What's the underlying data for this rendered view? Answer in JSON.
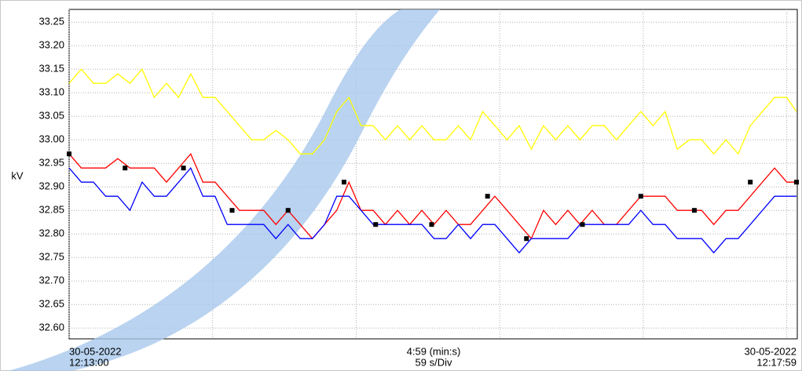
{
  "chart_data": {
    "type": "line",
    "ylabel": "kV",
    "ylim": [
      32.577,
      33.277
    ],
    "yticks": [
      {
        "value": 32.6,
        "label": "32.60"
      },
      {
        "value": 32.65,
        "label": "32.65"
      },
      {
        "value": 32.7,
        "label": "32.70"
      },
      {
        "value": 32.75,
        "label": "32.75"
      },
      {
        "value": 32.8,
        "label": "32.80"
      },
      {
        "value": 32.85,
        "label": "32.85"
      },
      {
        "value": 32.9,
        "label": "32.90"
      },
      {
        "value": 32.95,
        "label": "32.95"
      },
      {
        "value": 33.0,
        "label": "33.00"
      },
      {
        "value": 33.05,
        "label": "33.05"
      },
      {
        "value": 33.1,
        "label": "33.10"
      },
      {
        "value": 33.15,
        "label": "33.15"
      },
      {
        "value": 33.2,
        "label": "33.20"
      },
      {
        "value": 33.25,
        "label": "33.25"
      }
    ],
    "xlim": [
      0,
      299
    ],
    "xticks": [
      0,
      59,
      118,
      177,
      236,
      295
    ],
    "grid": true,
    "x_labels": {
      "left": [
        "30-05-2022",
        "12:13:00"
      ],
      "center": [
        "4:59 (min:s)",
        "59 s/Div"
      ],
      "right": [
        "30-05-2022",
        "12:17:59"
      ]
    },
    "x": [
      0,
      5,
      10,
      15,
      20,
      25,
      30,
      35,
      40,
      45,
      50,
      55,
      60,
      65,
      70,
      75,
      80,
      85,
      90,
      95,
      100,
      105,
      110,
      115,
      120,
      125,
      130,
      135,
      140,
      145,
      150,
      155,
      160,
      165,
      170,
      175,
      180,
      185,
      190,
      195,
      200,
      205,
      210,
      215,
      220,
      225,
      230,
      235,
      240,
      245,
      250,
      255,
      260,
      265,
      270,
      275,
      280,
      285,
      290,
      295,
      299
    ],
    "series": [
      {
        "color": "#ffff00",
        "values": [
          33.12,
          33.15,
          33.12,
          33.12,
          33.14,
          33.12,
          33.15,
          33.09,
          33.12,
          33.09,
          33.14,
          33.09,
          33.09,
          33.06,
          33.03,
          33.0,
          33.0,
          33.02,
          33.0,
          32.97,
          32.97,
          33.0,
          33.06,
          33.09,
          33.03,
          33.03,
          33.0,
          33.03,
          33.0,
          33.03,
          33.0,
          33.0,
          33.03,
          33.0,
          33.06,
          33.03,
          33.0,
          33.03,
          32.98,
          33.03,
          33.0,
          33.03,
          33.0,
          33.03,
          33.03,
          33.0,
          33.03,
          33.06,
          33.03,
          33.06,
          32.98,
          33.0,
          33.0,
          32.97,
          33.0,
          32.97,
          33.03,
          33.06,
          33.09,
          33.09,
          33.06
        ]
      },
      {
        "color": "#ff0000",
        "values": [
          32.97,
          32.94,
          32.94,
          32.94,
          32.96,
          32.94,
          32.94,
          32.94,
          32.91,
          32.94,
          32.97,
          32.91,
          32.91,
          32.88,
          32.85,
          32.85,
          32.85,
          32.82,
          32.85,
          32.82,
          32.79,
          32.82,
          32.85,
          32.91,
          32.85,
          32.85,
          32.82,
          32.85,
          32.82,
          32.85,
          32.82,
          32.85,
          32.82,
          32.82,
          32.85,
          32.88,
          32.85,
          32.82,
          32.79,
          32.85,
          32.82,
          32.85,
          32.82,
          32.85,
          32.82,
          32.82,
          32.85,
          32.88,
          32.88,
          32.88,
          32.85,
          32.85,
          32.85,
          32.82,
          32.85,
          32.85,
          32.88,
          32.91,
          32.94,
          32.91,
          32.91
        ]
      },
      {
        "color": "#0000ff",
        "values": [
          32.94,
          32.91,
          32.91,
          32.88,
          32.88,
          32.85,
          32.91,
          32.88,
          32.88,
          32.91,
          32.94,
          32.88,
          32.88,
          32.82,
          32.82,
          32.82,
          32.82,
          32.79,
          32.82,
          32.79,
          32.79,
          32.82,
          32.88,
          32.88,
          32.85,
          32.82,
          32.82,
          32.82,
          32.82,
          32.82,
          32.79,
          32.79,
          32.82,
          32.79,
          32.82,
          32.82,
          32.79,
          32.76,
          32.79,
          32.79,
          32.79,
          32.79,
          32.82,
          32.82,
          32.82,
          32.82,
          32.82,
          32.85,
          32.82,
          32.82,
          32.79,
          32.79,
          32.79,
          32.76,
          32.79,
          32.79,
          32.82,
          32.85,
          32.88,
          32.88,
          32.88
        ]
      }
    ],
    "markers": {
      "color": "#000000",
      "x": [
        0,
        23,
        47,
        67,
        90,
        113,
        126,
        149,
        172,
        188,
        211,
        235,
        257,
        280,
        299
      ],
      "values": [
        32.97,
        32.94,
        32.94,
        32.85,
        32.85,
        32.91,
        32.82,
        32.82,
        32.88,
        32.79,
        32.82,
        32.88,
        32.85,
        32.91,
        32.91
      ]
    }
  }
}
